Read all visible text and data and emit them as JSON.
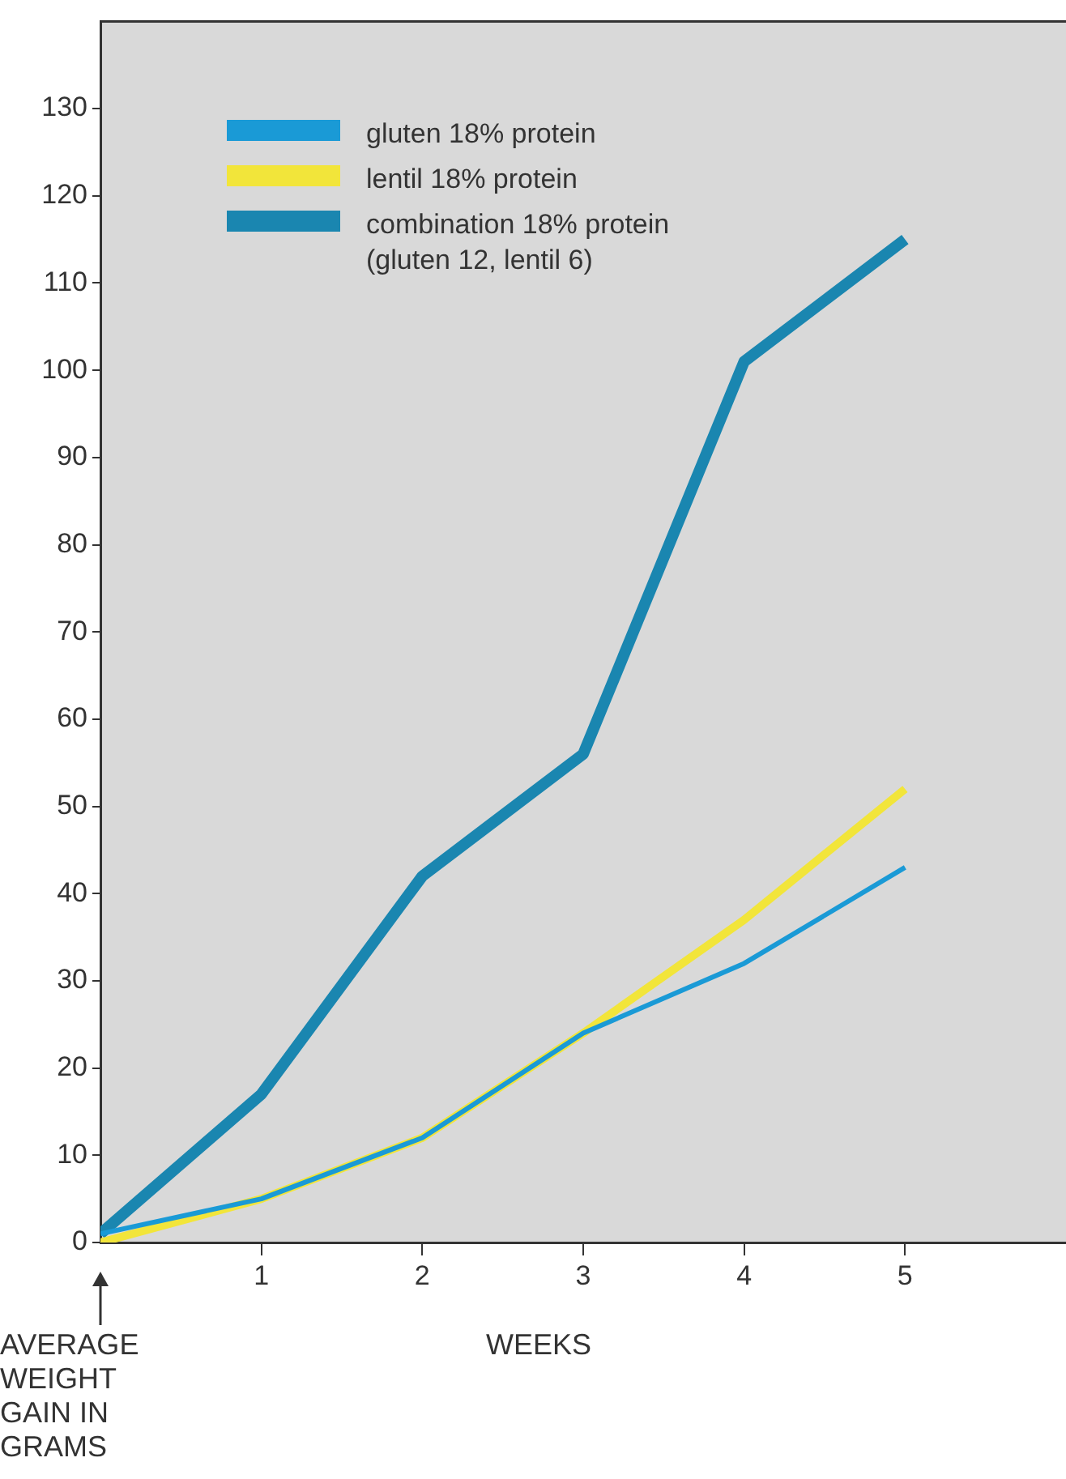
{
  "chart_data": {
    "type": "line",
    "xlabel": "WEEKS",
    "ylabel": "AVERAGE WEIGHT GAIN IN GRAMS",
    "x": [
      0,
      1,
      2,
      3,
      4,
      5
    ],
    "series": [
      {
        "name": "gluten 18% protein",
        "color": "#1a9ad6",
        "values": [
          1,
          5,
          12,
          24,
          32,
          43
        ]
      },
      {
        "name": "lentil 18% protein",
        "color": "#f2e53a",
        "values": [
          0,
          5,
          12,
          24,
          37,
          52
        ]
      },
      {
        "name": "combination 18% protein (gluten 12, lentil 6)",
        "color": "#1a86b0",
        "values": [
          1,
          17,
          42,
          56,
          101,
          115
        ]
      }
    ],
    "xlim": [
      0,
      6
    ],
    "xticks": [
      1,
      2,
      3,
      4,
      5
    ],
    "ylim": [
      0,
      140
    ],
    "yticks": [
      0,
      10,
      20,
      30,
      40,
      50,
      60,
      70,
      80,
      90,
      100,
      110,
      120,
      130
    ],
    "grid": false,
    "legend": "top left",
    "marker": "none",
    "line_style": "solid"
  }
}
